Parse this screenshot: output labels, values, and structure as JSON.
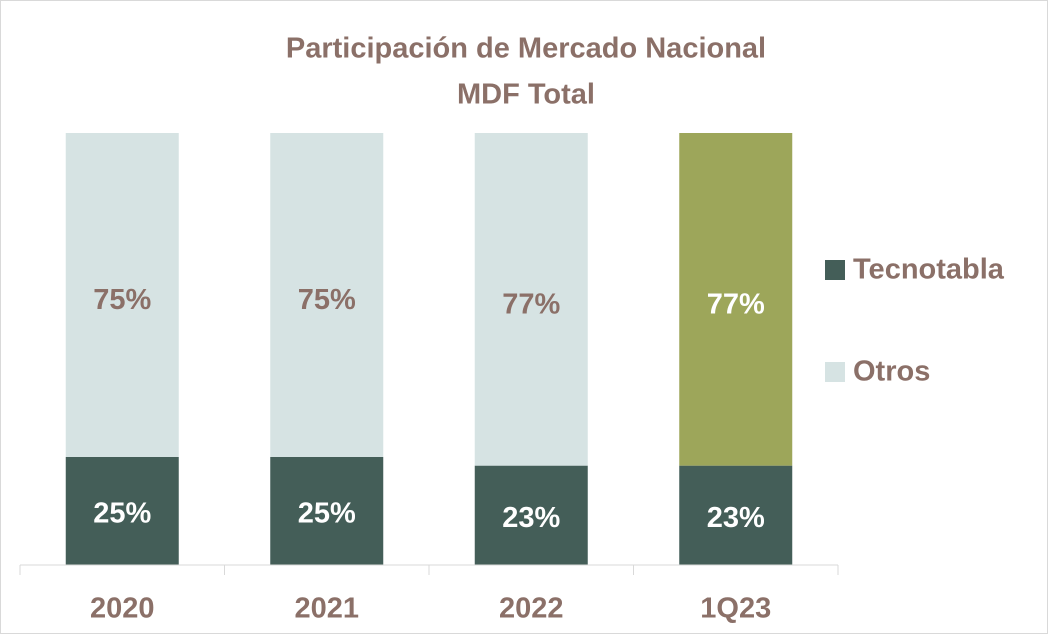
{
  "chart_data": {
    "type": "stacked_bar",
    "title": [
      "Participación de Mercado Nacional",
      "MDF Total"
    ],
    "categories": [
      "2020",
      "2021",
      "2022",
      "1Q23"
    ],
    "series": [
      {
        "name": "Tecnotabla",
        "color": "#445e58",
        "values": [
          25,
          25,
          23,
          23
        ],
        "value_labels": [
          "25%",
          "25%",
          "23%",
          "23%"
        ]
      },
      {
        "name": "Otros",
        "color": "#d6e3e3",
        "colors": [
          "#d6e3e3",
          "#d6e3e3",
          "#d6e3e3",
          "#9da65a"
        ],
        "values": [
          75,
          75,
          77,
          77
        ],
        "value_labels": [
          "75%",
          "75%",
          "77%",
          "77%"
        ]
      }
    ],
    "ylim": [
      0,
      100
    ],
    "legend": "right"
  }
}
